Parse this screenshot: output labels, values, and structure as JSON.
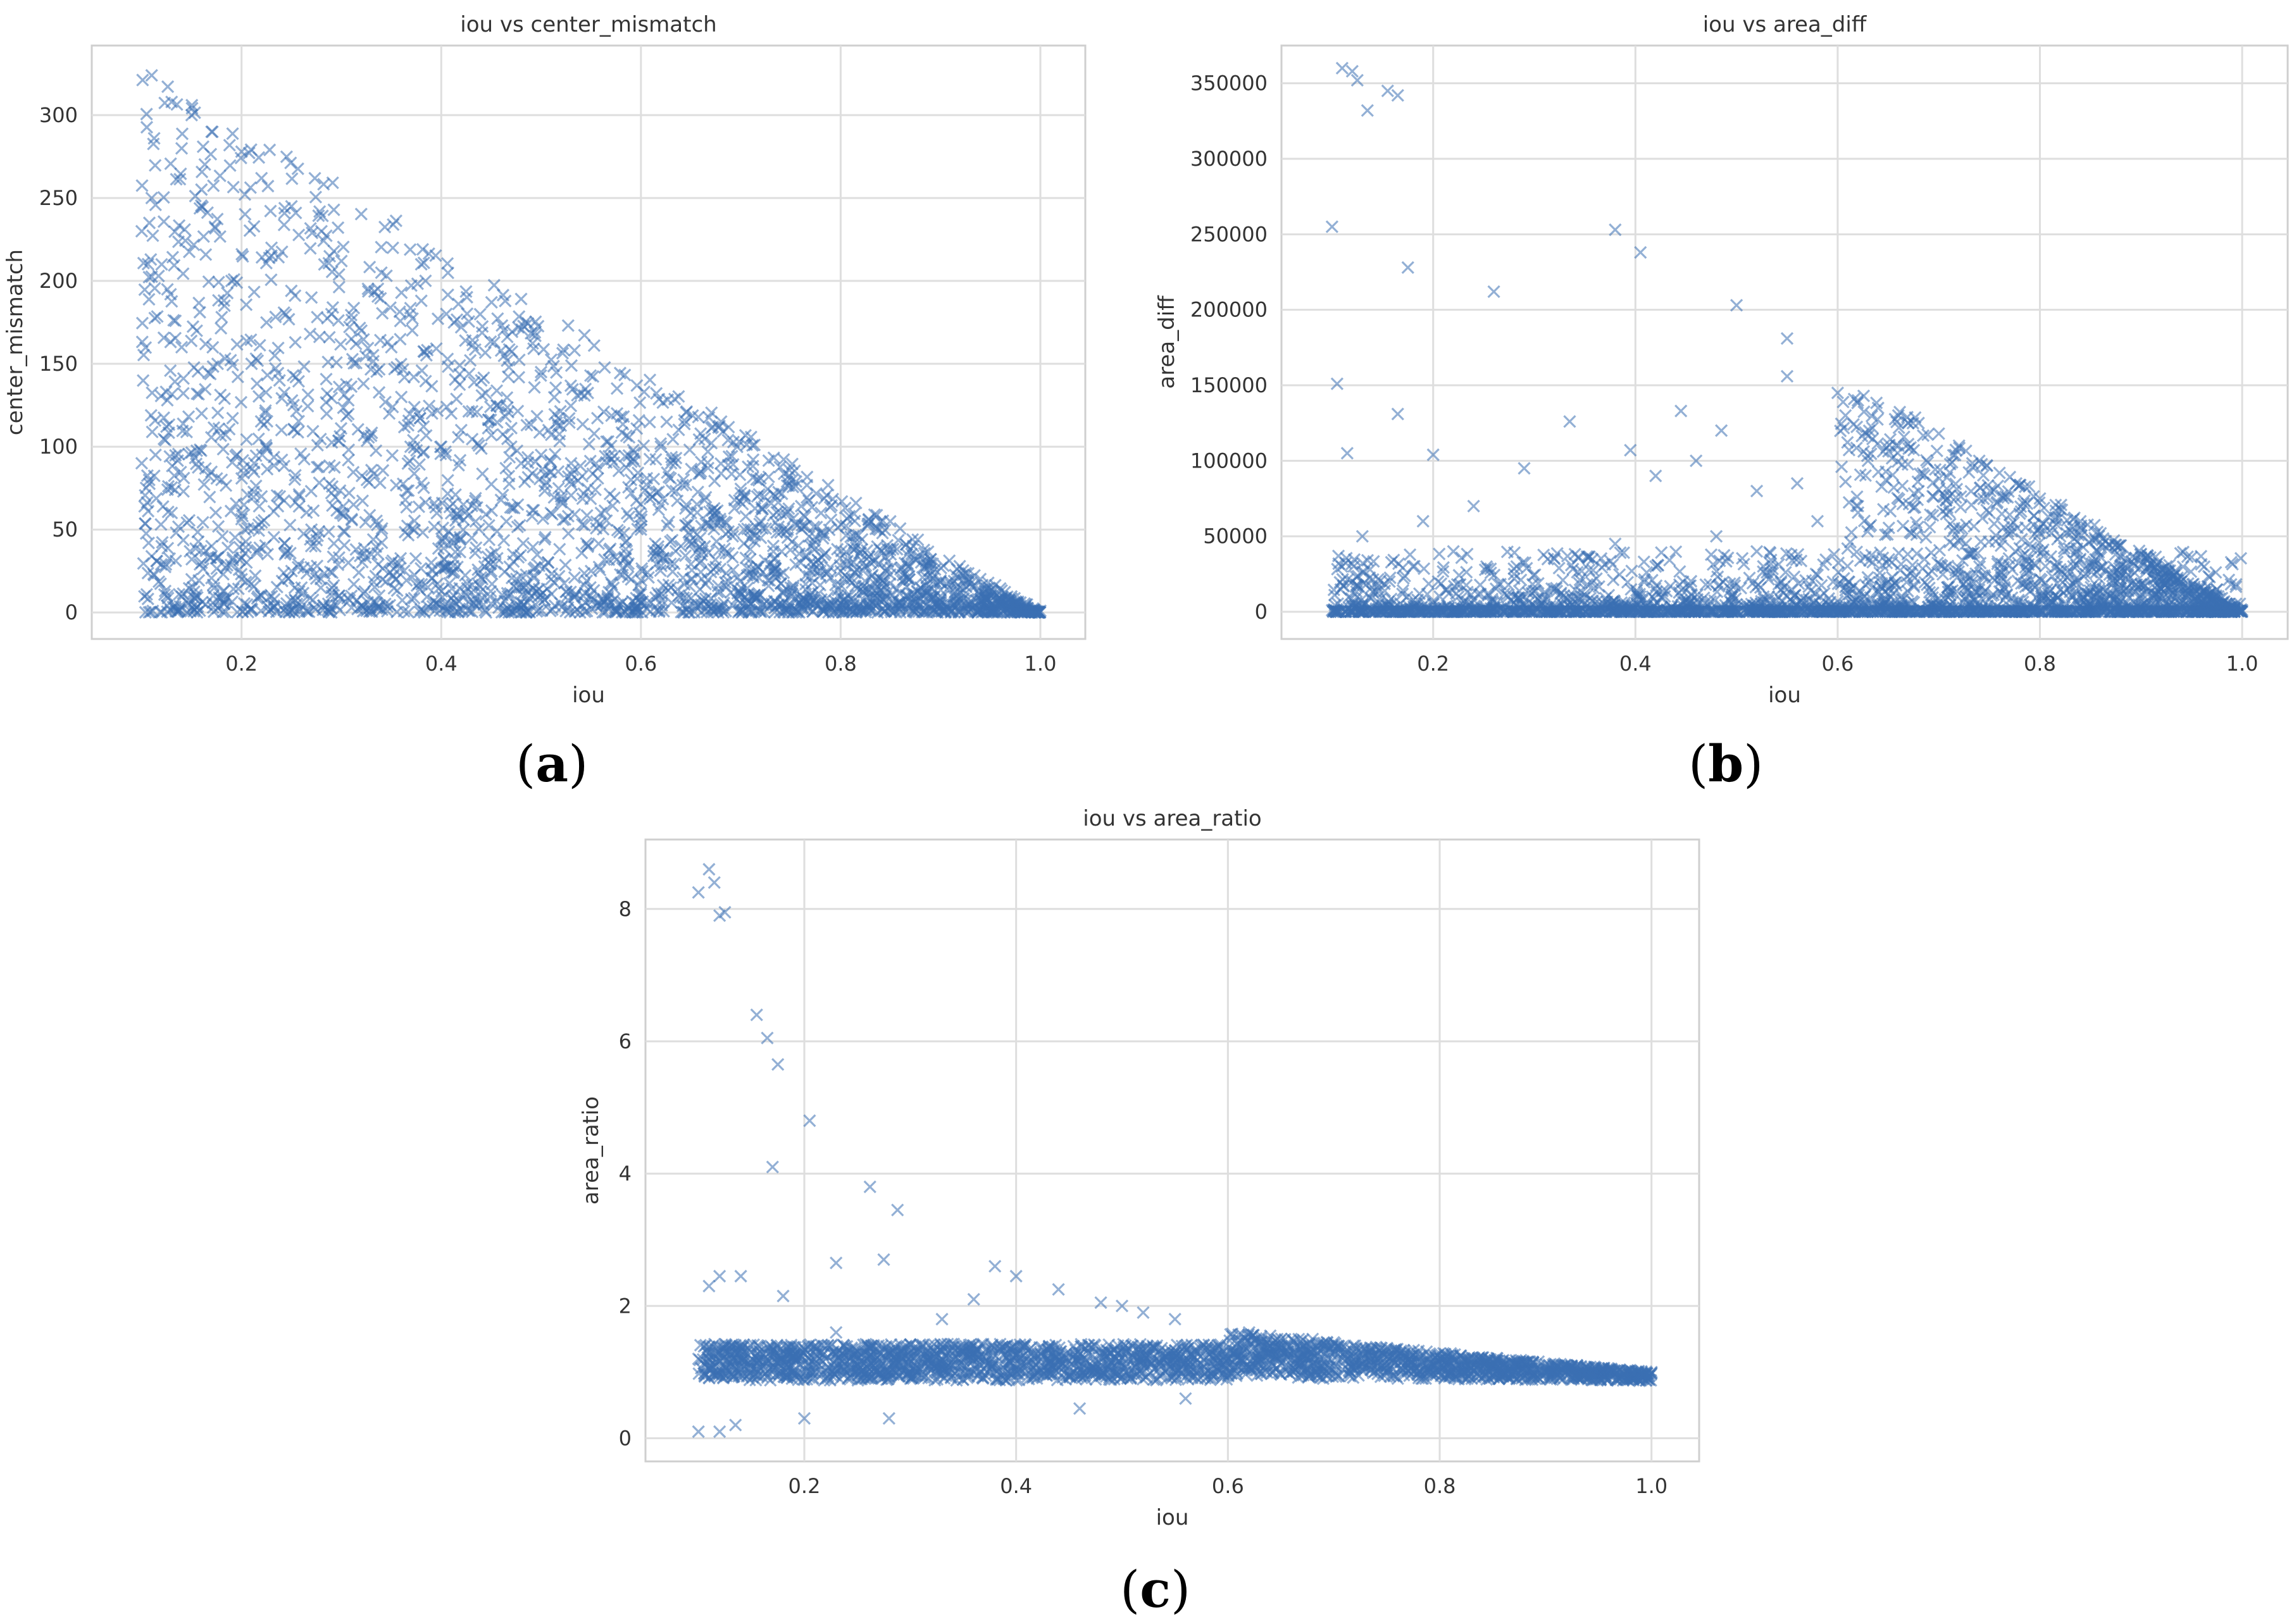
{
  "chart_data": [
    {
      "type": "scatter",
      "title": "iou vs center_mismatch",
      "xlabel": "iou",
      "ylabel": "center_mismatch",
      "xlim": [
        0.05,
        1.045
      ],
      "ylim": [
        -16,
        342
      ],
      "xticks": [
        0.2,
        0.4,
        0.6,
        0.8,
        1.0
      ],
      "yticks": [
        0,
        50,
        100,
        150,
        200,
        250,
        300
      ],
      "xtick_labels": [
        "0.2",
        "0.4",
        "0.6",
        "0.8",
        "1.0"
      ],
      "ytick_labels": [
        "0",
        "50",
        "100",
        "150",
        "200",
        "250",
        "300"
      ],
      "grid": true,
      "marker": "x",
      "color": "#3b70b3",
      "caption": "a",
      "series": [
        {
          "name": "iou vs center_mismatch",
          "x": [
            0.11,
            0.13,
            0.15,
            0.17,
            0.2,
            0.22,
            0.25,
            0.28,
            0.3,
            0.34,
            0.38,
            0.42,
            0.46,
            0.5,
            0.54,
            0.58,
            0.62,
            0.66,
            0.7,
            0.74,
            0.78,
            0.82,
            0.86,
            0.9,
            0.94,
            0.98,
            1.0,
            0.1,
            0.12,
            0.14,
            0.16,
            0.18,
            0.21,
            0.24,
            0.27,
            0.32,
            0.36,
            0.4,
            0.44,
            0.48,
            0.52,
            0.56,
            0.6,
            0.64,
            0.68,
            0.72,
            0.76,
            0.8,
            0.84,
            0.88,
            0.92,
            0.96,
            0.1,
            0.13,
            0.17,
            0.22,
            0.27,
            0.33,
            0.39,
            0.45,
            0.51,
            0.57,
            0.63,
            0.69,
            0.75,
            0.81,
            0.87,
            0.93,
            0.12,
            0.16,
            0.2,
            0.26,
            0.31,
            0.37,
            0.43,
            0.49,
            0.55,
            0.61,
            0.67,
            0.73,
            0.79,
            0.85,
            0.91,
            0.11,
            0.19,
            0.29,
            0.35,
            0.41,
            0.47,
            0.53,
            0.59,
            0.65,
            0.71,
            0.77,
            0.83,
            0.89,
            0.95,
            0.14,
            0.23,
            0.31,
            0.42,
            0.5,
            0.62,
            0.72,
            0.85,
            0.15,
            0.25,
            0.35,
            0.45,
            0.55,
            0.65,
            0.75,
            0.9
          ],
          "y": [
            324,
            308,
            300,
            290,
            278,
            262,
            245,
            230,
            212,
            205,
            188,
            172,
            158,
            145,
            132,
            118,
            100,
            85,
            72,
            60,
            48,
            36,
            26,
            18,
            10,
            4,
            1,
            230,
            210,
            160,
            120,
            80,
            150,
            110,
            190,
            170,
            130,
            100,
            140,
            90,
            70,
            60,
            50,
            40,
            55,
            45,
            30,
            25,
            20,
            15,
            12,
            8,
            90,
            60,
            40,
            70,
            50,
            35,
            30,
            25,
            20,
            18,
            15,
            12,
            10,
            8,
            6,
            5,
            40,
            30,
            20,
            15,
            10,
            8,
            12,
            10,
            8,
            6,
            5,
            4,
            3,
            3,
            2,
            250,
            200,
            180,
            160,
            120,
            100,
            90,
            80,
            60,
            50,
            40,
            30,
            20,
            10,
            280,
            220,
            165,
            110,
            95,
            65,
            55,
            35,
            20,
            25,
            30,
            35,
            25,
            20,
            15,
            10
          ]
        }
      ]
    },
    {
      "type": "scatter",
      "title": "iou vs area_diff",
      "xlabel": "iou",
      "ylabel": "area_diff",
      "xlim": [
        0.05,
        1.045
      ],
      "ylim": [
        -18000,
        375000
      ],
      "xticks": [
        0.2,
        0.4,
        0.6,
        0.8,
        1.0
      ],
      "yticks": [
        0,
        50000,
        100000,
        150000,
        200000,
        250000,
        300000,
        350000
      ],
      "xtick_labels": [
        "0.2",
        "0.4",
        "0.6",
        "0.8",
        "1.0"
      ],
      "ytick_labels": [
        "0",
        "50000",
        "100000",
        "150000",
        "200000",
        "250000",
        "300000",
        "350000"
      ],
      "grid": true,
      "marker": "x",
      "color": "#3b70b3",
      "caption": "b",
      "series": [
        {
          "name": "iou vs area_diff",
          "x": [
            0.11,
            0.12,
            0.125,
            0.155,
            0.165,
            0.135,
            0.1,
            0.175,
            0.26,
            0.38,
            0.405,
            0.5,
            0.55,
            0.105,
            0.165,
            0.115,
            0.2,
            0.335,
            0.395,
            0.445,
            0.485,
            0.55,
            0.6,
            0.62,
            0.64,
            0.66,
            0.68,
            0.7,
            0.72,
            0.74,
            0.76,
            0.78,
            0.8,
            0.82,
            0.84,
            0.86,
            0.88,
            0.9,
            0.92,
            0.94,
            0.96,
            0.98,
            1.0,
            0.1,
            0.15,
            0.2,
            0.25,
            0.3,
            0.35,
            0.4,
            0.45,
            0.5,
            0.55,
            0.6,
            0.65,
            0.7,
            0.75,
            0.8,
            0.85,
            0.9,
            0.95,
            0.12,
            0.18,
            0.22,
            0.28,
            0.32,
            0.38,
            0.42,
            0.48,
            0.52,
            0.58,
            0.62,
            0.68,
            0.72,
            0.78,
            0.82,
            0.88,
            0.13,
            0.19,
            0.24,
            0.29,
            0.42,
            0.46,
            0.52,
            0.56,
            0.63,
            0.66,
            0.74,
            0.79,
            0.84,
            0.92
          ],
          "y": [
            360000,
            358000,
            352000,
            345000,
            342000,
            332000,
            255000,
            228000,
            212000,
            253000,
            238000,
            203000,
            181000,
            151000,
            131000,
            105000,
            104000,
            126000,
            107000,
            133000,
            120000,
            156000,
            145000,
            140000,
            135000,
            130000,
            125000,
            118000,
            110000,
            100000,
            92000,
            84000,
            75000,
            68000,
            60000,
            52000,
            44000,
            36000,
            28000,
            20000,
            13000,
            6000,
            1000,
            1000,
            3000,
            5000,
            2000,
            4000,
            6000,
            3000,
            8000,
            5000,
            10000,
            7000,
            12000,
            9000,
            8000,
            6000,
            5000,
            4000,
            2000,
            20000,
            30000,
            40000,
            25000,
            35000,
            45000,
            30000,
            50000,
            40000,
            60000,
            70000,
            80000,
            55000,
            65000,
            50000,
            30000,
            50000,
            60000,
            70000,
            95000,
            90000,
            100000,
            80000,
            85000,
            100000,
            110000,
            75000,
            45000,
            35000,
            15000
          ]
        }
      ]
    },
    {
      "type": "scatter",
      "title": "iou vs area_ratio",
      "xlabel": "iou",
      "ylabel": "area_ratio",
      "xlim": [
        0.05,
        1.045
      ],
      "ylim": [
        -0.35,
        9.05
      ],
      "xticks": [
        0.2,
        0.4,
        0.6,
        0.8,
        1.0
      ],
      "yticks": [
        0,
        2,
        4,
        6,
        8
      ],
      "xtick_labels": [
        "0.2",
        "0.4",
        "0.6",
        "0.8",
        "1.0"
      ],
      "ytick_labels": [
        "0",
        "2",
        "4",
        "6",
        "8"
      ],
      "grid": true,
      "marker": "x",
      "color": "#3b70b3",
      "caption": "c",
      "series": [
        {
          "name": "iou vs area_ratio",
          "x": [
            0.1,
            0.11,
            0.115,
            0.12,
            0.125,
            0.155,
            0.165,
            0.175,
            0.17,
            0.205,
            0.262,
            0.288,
            0.23,
            0.275,
            0.38,
            0.4,
            0.44,
            0.11,
            0.12,
            0.14,
            0.18,
            0.1,
            0.12,
            0.135,
            0.2,
            0.28,
            0.46,
            0.56,
            0.6,
            0.62,
            0.64,
            0.66,
            0.68,
            0.7,
            0.72,
            0.74,
            0.76,
            0.78,
            0.8,
            0.82,
            0.84,
            0.86,
            0.88,
            0.9,
            0.92,
            0.94,
            0.96,
            0.98,
            1.0,
            0.1,
            0.13,
            0.16,
            0.19,
            0.22,
            0.25,
            0.28,
            0.31,
            0.34,
            0.37,
            0.4,
            0.43,
            0.46,
            0.49,
            0.52,
            0.55,
            0.58,
            0.15,
            0.21,
            0.27,
            0.33,
            0.39,
            0.45,
            0.51,
            0.57,
            0.63,
            0.69,
            0.75,
            0.81,
            0.87,
            0.93,
            0.97,
            0.23,
            0.33,
            0.36,
            0.48,
            0.5,
            0.52,
            0.55
          ],
          "y": [
            8.25,
            8.6,
            8.4,
            7.9,
            7.95,
            6.4,
            6.05,
            5.65,
            4.1,
            4.8,
            3.8,
            3.45,
            2.65,
            2.7,
            2.6,
            2.45,
            2.25,
            2.3,
            2.45,
            2.45,
            2.15,
            0.1,
            0.1,
            0.2,
            0.3,
            0.3,
            0.45,
            0.6,
            1.2,
            1.6,
            1.55,
            1.5,
            1.5,
            1.45,
            1.4,
            1.38,
            1.35,
            1.32,
            1.28,
            1.25,
            1.22,
            1.18,
            1.15,
            1.12,
            1.1,
            1.07,
            1.05,
            1.03,
            1.0,
            1.2,
            1.15,
            1.1,
            1.25,
            1.2,
            1.1,
            1.15,
            1.2,
            1.1,
            1.15,
            1.25,
            1.2,
            1.1,
            1.15,
            1.2,
            1.1,
            1.15,
            1.3,
            1.0,
            1.4,
            1.05,
            1.3,
            0.95,
            1.25,
            1.0,
            1.2,
            0.9,
            1.1,
            0.95,
            1.0,
            0.98,
            1.02,
            1.6,
            1.8,
            2.1,
            2.05,
            2.0,
            1.9,
            1.8
          ]
        }
      ]
    }
  ]
}
